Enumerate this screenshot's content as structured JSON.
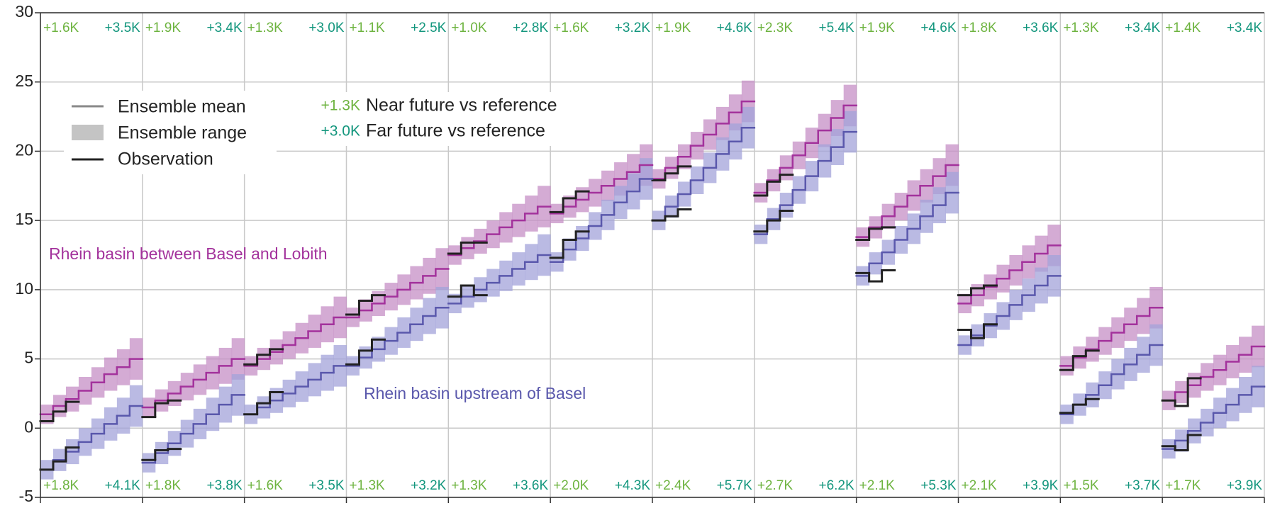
{
  "chart_data": {
    "type": "step-ensemble",
    "ylim": [
      -5,
      30
    ],
    "yticks": [
      -5,
      0,
      5,
      10,
      15,
      20,
      25,
      30
    ],
    "grid": true,
    "near_color": "#6db33f",
    "far_color": "#13967d",
    "observation_color": "#222222",
    "legend": {
      "mean": "Ensemble mean",
      "range": "Ensemble range",
      "observation": "Observation",
      "mean_color": "#888888",
      "range_color": "#c4c4c4",
      "near": {
        "label": "+1.3K",
        "text": "Near future vs reference"
      },
      "far": {
        "label": "+3.0K",
        "text": "Far future vs reference"
      }
    },
    "series": [
      {
        "name": "Rhein basin between Basel and Lobith",
        "color": "#a3329c",
        "range_color": "#c58fc6",
        "label_position": "top",
        "panels": [
          {
            "mean": [
              1.0,
              1.6,
              2.1,
              2.7,
              3.3,
              3.9,
              4.4,
              5.0
            ],
            "low": [
              0.3,
              0.8,
              1.2,
              1.7,
              2.2,
              2.7,
              3.1,
              3.5
            ],
            "high": [
              1.7,
              2.4,
              3.0,
              3.7,
              4.4,
              5.1,
              5.7,
              6.5
            ],
            "obs": [
              0.5,
              1.2,
              1.9
            ],
            "near": "+1.6K",
            "far": "+3.5K"
          },
          {
            "mean": [
              1.5,
              2.0,
              2.5,
              3.0,
              3.5,
              4.0,
              4.5,
              5.0
            ],
            "low": [
              0.8,
              1.2,
              1.6,
              2.0,
              2.4,
              2.8,
              3.2,
              3.5
            ],
            "high": [
              2.2,
              2.8,
              3.4,
              4.0,
              4.6,
              5.2,
              5.8,
              6.5
            ],
            "obs": [
              0.8,
              1.8,
              2.0
            ],
            "near": "+1.9K",
            "far": "+3.4K"
          },
          {
            "mean": [
              4.5,
              5.0,
              5.5,
              6.0,
              6.5,
              7.0,
              7.5,
              8.0
            ],
            "low": [
              3.8,
              4.2,
              4.6,
              5.0,
              5.4,
              5.8,
              6.2,
              6.5
            ],
            "high": [
              5.2,
              5.8,
              6.4,
              7.0,
              7.6,
              8.2,
              8.8,
              9.5
            ],
            "obs": [
              4.6,
              5.3,
              5.7
            ],
            "near": "+1.3K",
            "far": "+3.0K"
          },
          {
            "mean": [
              8.0,
              8.5,
              9.0,
              9.5,
              10.0,
              10.5,
              11.0,
              11.5
            ],
            "low": [
              7.3,
              7.7,
              8.1,
              8.5,
              8.9,
              9.3,
              9.7,
              10.0
            ],
            "high": [
              8.7,
              9.3,
              9.9,
              10.5,
              11.1,
              11.7,
              12.3,
              13.0
            ],
            "obs": [
              8.2,
              9.2,
              9.6
            ],
            "near": "+1.1K",
            "far": "+2.5K"
          },
          {
            "mean": [
              12.5,
              13.0,
              13.5,
              14.0,
              14.5,
              15.0,
              15.5,
              16.0
            ],
            "low": [
              11.8,
              12.2,
              12.6,
              13.0,
              13.4,
              13.8,
              14.2,
              14.5
            ],
            "high": [
              13.2,
              13.8,
              14.4,
              15.0,
              15.6,
              16.2,
              16.8,
              17.5
            ],
            "obs": [
              12.6,
              13.4,
              13.4
            ],
            "near": "+1.0K",
            "far": "+2.8K"
          },
          {
            "mean": [
              15.5,
              16.0,
              16.5,
              17.0,
              17.5,
              18.0,
              18.5,
              19.0
            ],
            "low": [
              14.8,
              15.2,
              15.6,
              16.0,
              16.4,
              16.8,
              17.2,
              17.5
            ],
            "high": [
              16.2,
              16.8,
              17.4,
              18.0,
              18.6,
              19.2,
              19.8,
              20.5
            ],
            "obs": [
              15.6,
              16.6,
              17.1
            ],
            "near": "+1.6K",
            "far": "+3.2K"
          },
          {
            "mean": [
              18.0,
              18.8,
              19.6,
              20.4,
              21.2,
              22.0,
              22.8,
              23.6
            ],
            "low": [
              17.3,
              18.0,
              18.7,
              19.4,
              20.1,
              20.8,
              21.5,
              22.1
            ],
            "high": [
              18.7,
              19.6,
              20.5,
              21.4,
              22.3,
              23.2,
              24.1,
              25.1
            ],
            "obs": [
              17.9,
              18.4,
              18.9
            ],
            "near": "+1.9K",
            "far": "+4.6K"
          },
          {
            "mean": [
              17.0,
              17.9,
              18.8,
              19.7,
              20.6,
              21.5,
              22.4,
              23.3
            ],
            "low": [
              16.3,
              17.1,
              17.9,
              18.7,
              19.5,
              20.3,
              21.1,
              21.8
            ],
            "high": [
              17.7,
              18.7,
              19.7,
              20.7,
              21.7,
              22.7,
              23.7,
              24.8
            ],
            "obs": [
              16.8,
              17.8,
              18.3
            ],
            "near": "+2.3K",
            "far": "+5.4K"
          },
          {
            "mean": [
              13.8,
              14.5,
              15.3,
              16.0,
              16.8,
              17.5,
              18.2,
              19.0
            ],
            "low": [
              13.1,
              13.7,
              14.4,
              15.0,
              15.7,
              16.3,
              16.9,
              17.5
            ],
            "high": [
              14.5,
              15.3,
              16.2,
              17.0,
              17.9,
              18.7,
              19.5,
              20.5
            ],
            "obs": [
              13.6,
              14.4,
              14.5
            ],
            "near": "+1.9K",
            "far": "+4.6K"
          },
          {
            "mean": [
              9.0,
              9.6,
              10.2,
              10.8,
              11.4,
              12.0,
              12.6,
              13.2
            ],
            "low": [
              8.3,
              8.8,
              9.3,
              9.8,
              10.3,
              10.8,
              11.3,
              11.7
            ],
            "high": [
              9.7,
              10.4,
              11.1,
              11.8,
              12.5,
              13.2,
              13.9,
              14.7
            ],
            "obs": [
              9.6,
              10.1,
              10.3
            ],
            "near": "+1.8K",
            "far": "+3.6K"
          },
          {
            "mean": [
              4.5,
              5.1,
              5.7,
              6.3,
              6.9,
              7.5,
              8.1,
              8.7
            ],
            "low": [
              3.8,
              4.3,
              4.8,
              5.3,
              5.8,
              6.3,
              6.8,
              7.2
            ],
            "high": [
              5.2,
              5.9,
              6.6,
              7.3,
              8.0,
              8.7,
              9.4,
              10.2
            ],
            "obs": [
              4.2,
              5.2,
              5.6
            ],
            "near": "+1.3K",
            "far": "+3.4K"
          },
          {
            "mean": [
              2.0,
              2.6,
              3.1,
              3.7,
              4.2,
              4.8,
              5.3,
              5.9
            ],
            "low": [
              1.3,
              1.8,
              2.2,
              2.7,
              3.1,
              3.6,
              4.0,
              4.4
            ],
            "high": [
              2.7,
              3.4,
              4.0,
              4.7,
              5.3,
              6.0,
              6.6,
              7.4
            ],
            "obs": [
              2.0,
              1.6,
              3.6
            ],
            "near": "+1.4K",
            "far": "+3.4K"
          }
        ]
      },
      {
        "name": "Rhein basin upstream of Basel",
        "color": "#5a58ac",
        "range_color": "#a3a3d9",
        "label_position": "bottom",
        "panels": [
          {
            "mean": [
              -3.0,
              -2.3,
              -1.7,
              -1.0,
              -0.4,
              0.3,
              0.9,
              1.6
            ],
            "low": [
              -3.7,
              -3.1,
              -2.6,
              -2.0,
              -1.5,
              -0.9,
              -0.4,
              0.1
            ],
            "high": [
              -2.3,
              -1.5,
              -0.8,
              0.0,
              0.7,
              1.5,
              2.2,
              3.1
            ],
            "obs": [
              -3.0,
              -2.4,
              -1.4
            ],
            "near": "+1.8K",
            "far": "+4.1K"
          },
          {
            "mean": [
              -2.5,
              -1.8,
              -1.1,
              -0.4,
              0.3,
              1.0,
              1.7,
              2.4
            ],
            "low": [
              -3.2,
              -2.6,
              -2.0,
              -1.4,
              -0.8,
              -0.2,
              0.4,
              0.9
            ],
            "high": [
              -1.8,
              -1.0,
              -0.2,
              0.6,
              1.4,
              2.2,
              3.0,
              3.9
            ],
            "obs": [
              -2.3,
              -1.6,
              -1.5
            ],
            "near": "+1.8K",
            "far": "+3.8K"
          },
          {
            "mean": [
              1.0,
              1.5,
              2.0,
              2.5,
              3.0,
              3.5,
              4.0,
              4.5
            ],
            "low": [
              0.3,
              0.7,
              1.1,
              1.5,
              1.9,
              2.3,
              2.7,
              3.0
            ],
            "high": [
              1.7,
              2.3,
              2.9,
              3.5,
              4.1,
              4.7,
              5.3,
              6.0
            ],
            "obs": [
              1.0,
              1.8,
              2.6
            ],
            "near": "+1.6K",
            "far": "+3.5K"
          },
          {
            "mean": [
              4.5,
              5.1,
              5.7,
              6.3,
              6.9,
              7.5,
              8.1,
              8.7
            ],
            "low": [
              3.8,
              4.3,
              4.8,
              5.3,
              5.8,
              6.3,
              6.8,
              7.2
            ],
            "high": [
              5.2,
              5.9,
              6.6,
              7.3,
              8.0,
              8.7,
              9.4,
              10.2
            ],
            "obs": [
              4.6,
              5.6,
              6.4
            ],
            "near": "+1.3K",
            "far": "+3.2K"
          },
          {
            "mean": [
              9.0,
              9.5,
              10.0,
              10.5,
              11.0,
              11.5,
              12.0,
              12.5
            ],
            "low": [
              8.3,
              8.7,
              9.1,
              9.5,
              9.9,
              10.3,
              10.7,
              11.0
            ],
            "high": [
              9.7,
              10.3,
              10.9,
              11.5,
              12.1,
              12.7,
              13.3,
              14.0
            ],
            "obs": [
              9.5,
              10.3,
              9.6
            ],
            "near": "+1.3K",
            "far": "+3.6K"
          },
          {
            "mean": [
              12.0,
              12.9,
              13.7,
              14.6,
              15.4,
              16.3,
              17.1,
              18.0
            ],
            "low": [
              11.3,
              12.1,
              12.8,
              13.6,
              14.3,
              15.1,
              15.8,
              16.5
            ],
            "high": [
              12.7,
              13.7,
              14.6,
              15.6,
              16.5,
              17.5,
              18.4,
              19.5
            ],
            "obs": [
              12.3,
              13.6,
              14.2
            ],
            "near": "+2.0K",
            "far": "+4.3K"
          },
          {
            "mean": [
              15.0,
              16.0,
              16.9,
              17.9,
              18.8,
              19.8,
              20.7,
              21.7
            ],
            "low": [
              14.3,
              15.2,
              16.0,
              16.9,
              17.7,
              18.6,
              19.4,
              20.2
            ],
            "high": [
              15.7,
              16.8,
              17.8,
              18.9,
              19.9,
              21.0,
              22.0,
              23.2
            ],
            "obs": [
              15.0,
              15.3,
              15.8
            ],
            "near": "+2.4K",
            "far": "+5.7K"
          },
          {
            "mean": [
              14.0,
              15.1,
              16.1,
              17.2,
              18.2,
              19.3,
              20.3,
              21.4
            ],
            "low": [
              13.3,
              14.3,
              15.2,
              16.2,
              17.1,
              18.1,
              19.0,
              19.9
            ],
            "high": [
              14.7,
              15.9,
              17.0,
              18.2,
              19.3,
              20.5,
              21.6,
              22.9
            ],
            "obs": [
              14.2,
              15.0,
              15.7
            ],
            "near": "+2.7K",
            "far": "+6.2K"
          },
          {
            "mean": [
              11.0,
              11.9,
              12.7,
              13.6,
              14.4,
              15.3,
              16.1,
              17.0
            ],
            "low": [
              10.3,
              11.1,
              11.8,
              12.6,
              13.3,
              14.1,
              14.8,
              15.5
            ],
            "high": [
              11.7,
              12.7,
              13.6,
              14.6,
              15.5,
              16.5,
              17.4,
              18.5
            ],
            "obs": [
              11.2,
              10.6,
              11.4
            ],
            "near": "+2.1K",
            "far": "+5.3K"
          },
          {
            "mean": [
              6.0,
              6.7,
              7.4,
              8.1,
              8.9,
              9.6,
              10.3,
              11.0
            ],
            "low": [
              5.3,
              5.9,
              6.5,
              7.1,
              7.8,
              8.4,
              9.0,
              9.5
            ],
            "high": [
              6.7,
              7.5,
              8.3,
              9.1,
              10.0,
              10.8,
              11.6,
              12.5
            ],
            "obs": [
              7.1,
              6.5,
              7.5
            ],
            "near": "+2.1K",
            "far": "+3.9K"
          },
          {
            "mean": [
              1.0,
              1.7,
              2.4,
              3.1,
              3.9,
              4.6,
              5.3,
              6.0
            ],
            "low": [
              0.3,
              0.9,
              1.5,
              2.1,
              2.8,
              3.4,
              4.0,
              4.5
            ],
            "high": [
              1.7,
              2.5,
              3.3,
              4.1,
              5.0,
              5.8,
              6.6,
              7.5
            ],
            "obs": [
              1.1,
              1.7,
              2.1
            ],
            "near": "+1.5K",
            "far": "+3.7K"
          },
          {
            "mean": [
              -1.5,
              -0.9,
              -0.2,
              0.4,
              1.1,
              1.7,
              2.4,
              3.0
            ],
            "low": [
              -2.2,
              -1.7,
              -1.1,
              -0.6,
              0.0,
              0.5,
              1.1,
              1.5
            ],
            "high": [
              -0.8,
              -0.1,
              0.7,
              1.4,
              2.2,
              2.9,
              3.7,
              4.5
            ],
            "obs": [
              -1.3,
              -1.6,
              -0.5
            ],
            "near": "+1.7K",
            "far": "+3.9K"
          }
        ]
      }
    ]
  }
}
